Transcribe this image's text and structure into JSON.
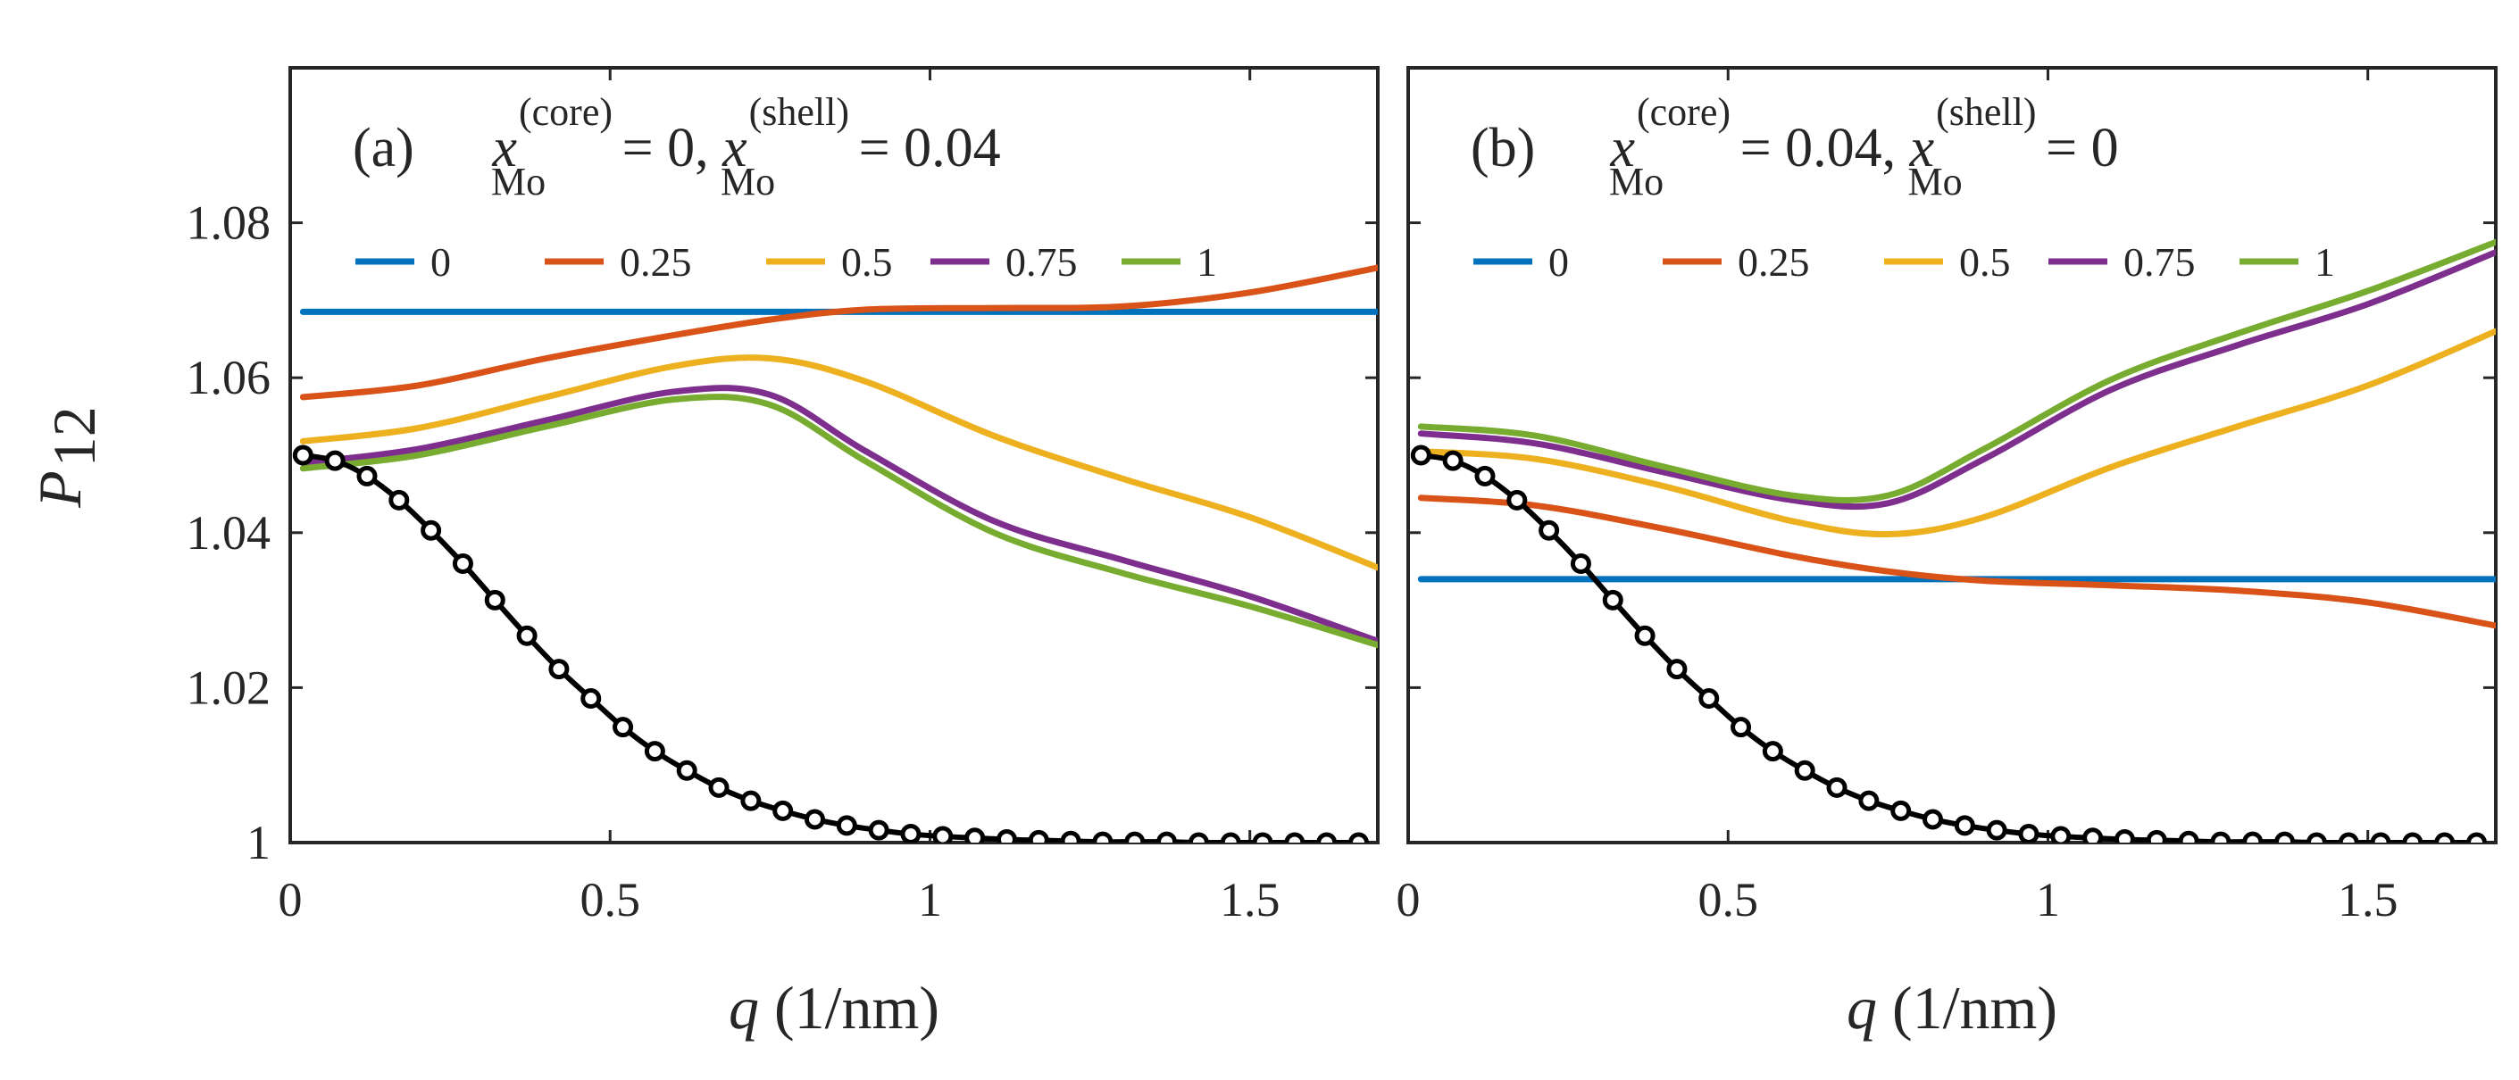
{
  "chart_data": [
    {
      "type": "line",
      "panel_label": "(a)",
      "annotation": {
        "var": "x",
        "sub": "Mo",
        "sup1": "(core)",
        "val1": " = 0, ",
        "sup2": "(shell)",
        "val2": " = 0.04"
      },
      "ylabel": {
        "main": "P",
        "sub": "12"
      },
      "xlabel": {
        "var": "q",
        "unit": " (1/nm)"
      },
      "xlim": [
        0,
        1.7
      ],
      "ylim": [
        1.0,
        1.1
      ],
      "xticks": [
        0,
        0.5,
        1,
        1.5
      ],
      "xtick_labels": [
        "0",
        "0.5",
        "1",
        "1.5"
      ],
      "yticks": [
        1.0,
        1.02,
        1.04,
        1.06,
        1.08
      ],
      "ytick_labels": [
        "1",
        "1.02",
        "1.04",
        "1.06",
        "1.08"
      ],
      "legend": {
        "placement": "top",
        "labels": [
          "0",
          "0.25",
          "0.5",
          "0.75",
          "1"
        ]
      },
      "x": [
        0.02,
        0.2,
        0.4,
        0.6,
        0.75,
        0.9,
        1.1,
        1.3,
        1.5,
        1.7
      ],
      "series": [
        {
          "name": "0",
          "color": "#0072BD",
          "values": [
            1.0685,
            1.0685,
            1.0685,
            1.0685,
            1.0685,
            1.0685,
            1.0685,
            1.0685,
            1.0685,
            1.0685
          ]
        },
        {
          "name": "0.25",
          "color": "#D95319",
          "values": [
            1.0575,
            1.059,
            1.0625,
            1.0655,
            1.0675,
            1.0688,
            1.069,
            1.0692,
            1.071,
            1.0742
          ]
        },
        {
          "name": "0.5",
          "color": "#EDB120",
          "values": [
            1.0518,
            1.0535,
            1.0575,
            1.0615,
            1.0625,
            1.0595,
            1.0525,
            1.047,
            1.042,
            1.0355
          ]
        },
        {
          "name": "0.75",
          "color": "#7E2F8E",
          "values": [
            1.049,
            1.0508,
            1.0545,
            1.0582,
            1.0578,
            1.0505,
            1.0415,
            1.0365,
            1.0318,
            1.026
          ]
        },
        {
          "name": "1",
          "color": "#77AC30",
          "values": [
            1.0483,
            1.05,
            1.0537,
            1.0572,
            1.0565,
            1.0492,
            1.04,
            1.0348,
            1.0305,
            1.0255
          ]
        }
      ],
      "markers": {
        "name": "black-circles",
        "x": [
          0.02,
          0.07,
          0.12,
          0.17,
          0.22,
          0.27,
          0.32,
          0.37,
          0.42,
          0.47,
          0.52,
          0.57,
          0.62,
          0.67,
          0.72,
          0.77,
          0.82,
          0.87,
          0.92,
          0.97,
          1.02,
          1.07,
          1.12,
          1.17,
          1.22,
          1.27,
          1.32,
          1.37,
          1.42,
          1.47,
          1.52,
          1.57,
          1.62,
          1.67
        ],
        "values": [
          1.05,
          1.0493,
          1.0473,
          1.0442,
          1.0403,
          1.036,
          1.0313,
          1.0267,
          1.0224,
          1.0186,
          1.0149,
          1.0118,
          1.0093,
          1.0071,
          1.0054,
          1.0041,
          1.003,
          1.0022,
          1.0016,
          1.0011,
          1.0008,
          1.0006,
          1.0004,
          1.0003,
          1.0002,
          1.0001,
          1.0001,
          1.0001,
          1.0,
          1.0,
          1.0,
          1.0,
          1.0,
          1.0
        ]
      }
    },
    {
      "type": "line",
      "panel_label": "(b)",
      "annotation": {
        "var": "x",
        "sub": "Mo",
        "sup1": "(core)",
        "val1": " = 0.04, ",
        "sup2": "(shell)",
        "val2": " = 0"
      },
      "xlabel": {
        "var": "q",
        "unit": " (1/nm)"
      },
      "xlim": [
        0,
        1.7
      ],
      "ylim": [
        1.0,
        1.1
      ],
      "xticks": [
        0,
        0.5,
        1,
        1.5
      ],
      "xtick_labels": [
        "0",
        "0.5",
        "1",
        "1.5"
      ],
      "yticks": [
        1.0,
        1.02,
        1.04,
        1.06,
        1.08
      ],
      "legend": {
        "placement": "top",
        "labels": [
          "0",
          "0.25",
          "0.5",
          "0.75",
          "1"
        ]
      },
      "x": [
        0.02,
        0.2,
        0.4,
        0.6,
        0.75,
        0.9,
        1.1,
        1.3,
        1.5,
        1.7
      ],
      "series": [
        {
          "name": "0",
          "color": "#0072BD",
          "values": [
            1.034,
            1.034,
            1.034,
            1.034,
            1.034,
            1.034,
            1.034,
            1.034,
            1.034,
            1.034
          ]
        },
        {
          "name": "0.25",
          "color": "#D95319",
          "values": [
            1.0445,
            1.0435,
            1.0405,
            1.037,
            1.035,
            1.0338,
            1.0332,
            1.0325,
            1.031,
            1.028
          ]
        },
        {
          "name": "0.5",
          "color": "#EDB120",
          "values": [
            1.0505,
            1.0495,
            1.046,
            1.0415,
            1.0398,
            1.042,
            1.0485,
            1.0538,
            1.059,
            1.066
          ]
        },
        {
          "name": "0.75",
          "color": "#7E2F8E",
          "values": [
            1.0528,
            1.0515,
            1.0478,
            1.0442,
            1.0438,
            1.0495,
            1.0585,
            1.0643,
            1.0695,
            1.0762
          ]
        },
        {
          "name": "1",
          "color": "#77AC30",
          "values": [
            1.0537,
            1.0525,
            1.0485,
            1.0448,
            1.0448,
            1.0508,
            1.0598,
            1.0658,
            1.0712,
            1.0775
          ]
        }
      ],
      "markers": {
        "name": "black-circles",
        "x": [
          0.02,
          0.07,
          0.12,
          0.17,
          0.22,
          0.27,
          0.32,
          0.37,
          0.42,
          0.47,
          0.52,
          0.57,
          0.62,
          0.67,
          0.72,
          0.77,
          0.82,
          0.87,
          0.92,
          0.97,
          1.02,
          1.07,
          1.12,
          1.17,
          1.22,
          1.27,
          1.32,
          1.37,
          1.42,
          1.47,
          1.52,
          1.57,
          1.62,
          1.67
        ],
        "values": [
          1.05,
          1.0493,
          1.0473,
          1.0442,
          1.0403,
          1.036,
          1.0313,
          1.0267,
          1.0224,
          1.0186,
          1.0149,
          1.0118,
          1.0093,
          1.0071,
          1.0054,
          1.0041,
          1.003,
          1.0022,
          1.0016,
          1.0011,
          1.0008,
          1.0006,
          1.0004,
          1.0003,
          1.0002,
          1.0001,
          1.0001,
          1.0001,
          1.0,
          1.0,
          1.0,
          1.0,
          1.0,
          1.0
        ]
      }
    }
  ]
}
